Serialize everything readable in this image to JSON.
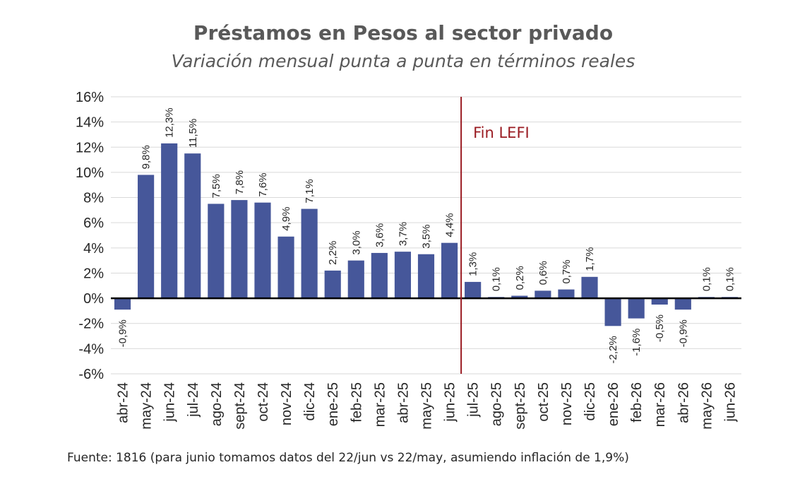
{
  "header": {
    "title": "Préstamos en Pesos al sector privado",
    "subtitle": "Variación mensual punta a punta en términos reales"
  },
  "footer": {
    "source": "Fuente: 1816 (para junio tomamos datos del 22/jun vs 22/may, asumiendo inflación de 1,9%)"
  },
  "annotation": {
    "label": "Fin LEFI",
    "after_category": "jun-25",
    "color": "#9a1b22"
  },
  "chart_data": {
    "type": "bar",
    "title": "Préstamos en Pesos al sector privado",
    "subtitle": "Variación mensual punta a punta en términos reales",
    "categories": [
      "abr-24",
      "may-24",
      "jun-24",
      "jul-24",
      "ago-24",
      "sept-24",
      "oct-24",
      "nov-24",
      "dic-24",
      "ene-25",
      "feb-25",
      "mar-25",
      "abr-25",
      "may-25",
      "jun-25",
      "jul-25",
      "ago-25",
      "sept-25",
      "oct-25",
      "nov-25",
      "dic-25",
      "ene-26",
      "feb-26",
      "mar-26",
      "abr-26",
      "may-26",
      "jun-26"
    ],
    "values": [
      -0.9,
      9.8,
      12.3,
      11.5,
      7.5,
      7.8,
      7.6,
      4.9,
      7.1,
      2.2,
      3.0,
      3.6,
      3.7,
      3.5,
      4.4,
      1.3,
      0.1,
      0.2,
      0.6,
      0.7,
      1.7,
      -2.2,
      -1.6,
      -0.5,
      -0.9,
      0.1,
      0.1
    ],
    "data_labels": [
      "-0,9%",
      "9,8%",
      "12,3%",
      "11,5%",
      "7,5%",
      "7,8%",
      "7,6%",
      "4,9%",
      "7,1%",
      "2,2%",
      "3,0%",
      "3,6%",
      "3,7%",
      "3,5%",
      "4,4%",
      "1,3%",
      "0,1%",
      "0,2%",
      "0,6%",
      "0,7%",
      "1,7%",
      "-2,2%",
      "-1,6%",
      "-0,5%",
      "-0,9%",
      "0,1%",
      "0,1%"
    ],
    "yticks": [
      "-6%",
      "-4%",
      "-2%",
      "0%",
      "2%",
      "4%",
      "6%",
      "8%",
      "10%",
      "12%",
      "14%",
      "16%"
    ],
    "ylim": [
      -6,
      16
    ],
    "ytick_step": 2,
    "grid": true,
    "bar_color": "#46579a",
    "xlabel": "",
    "ylabel": ""
  }
}
